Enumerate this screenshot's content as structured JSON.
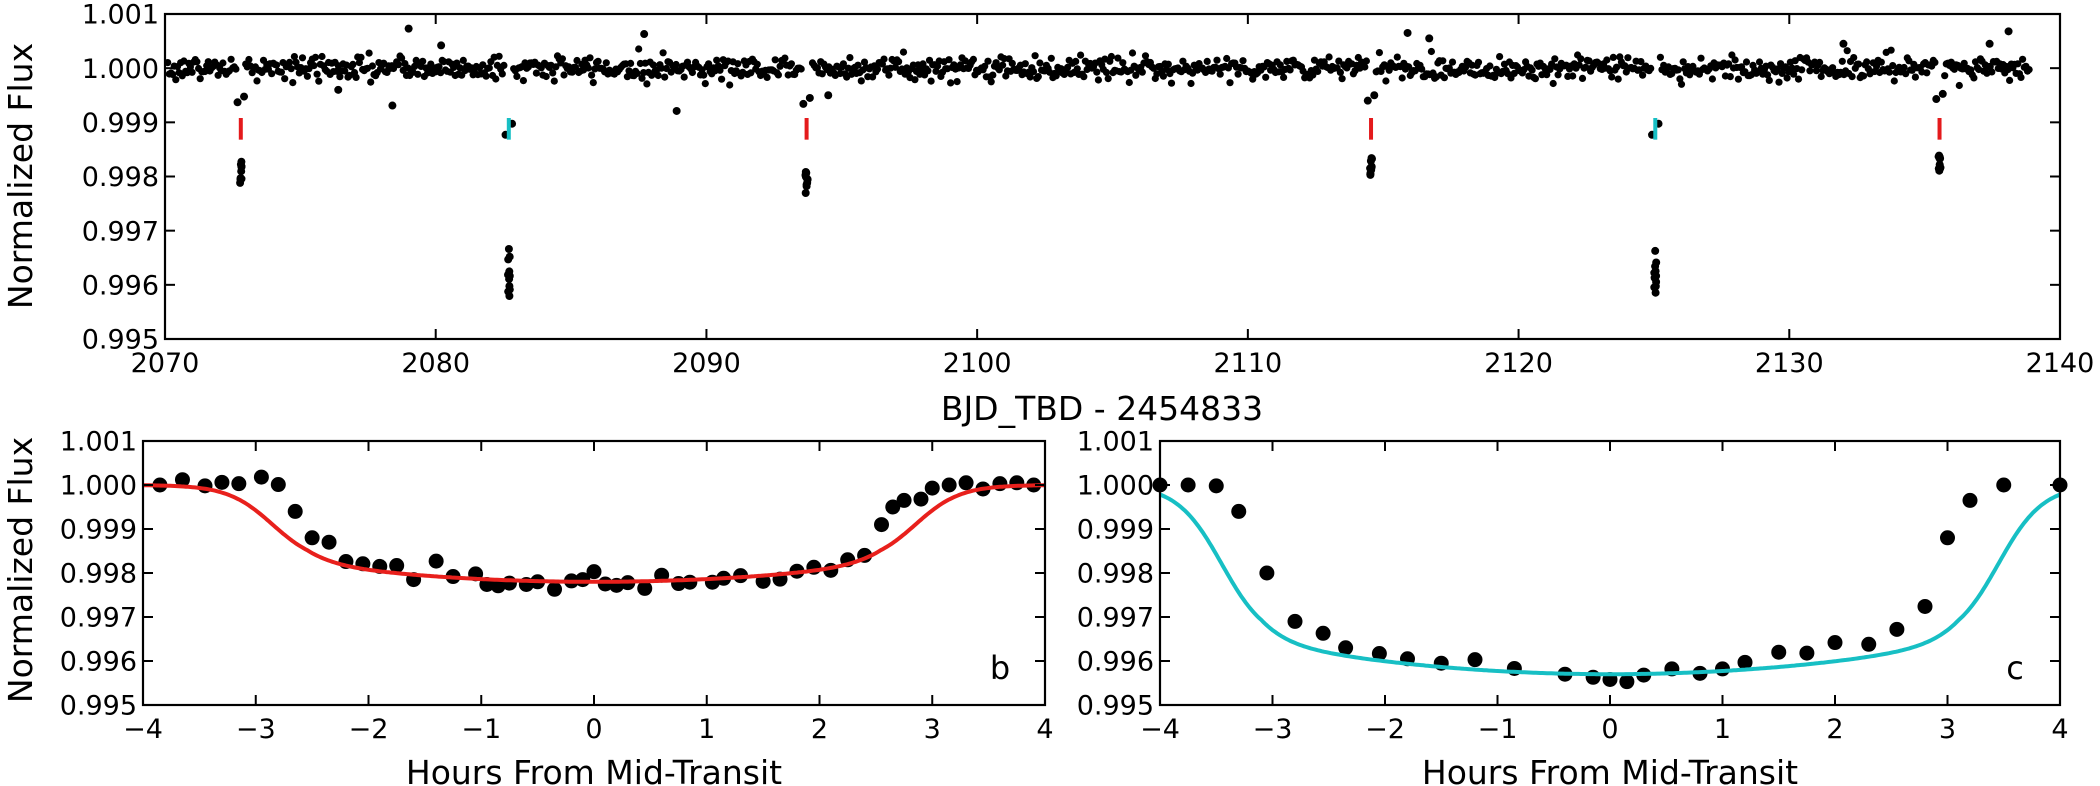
{
  "chart_data": [
    {
      "id": "top",
      "type": "scatter",
      "panel": "lightcurve",
      "ylabel": "Normalized Flux",
      "xlabel": "BJD_TBD - 2454833",
      "xlim": [
        2070,
        2140
      ],
      "ylim": [
        0.995,
        1.001
      ],
      "xticks": [
        2070,
        2080,
        2090,
        2100,
        2110,
        2120,
        2130,
        2140
      ],
      "xtick_labels": [
        "2070",
        "2080",
        "2090",
        "2100",
        "2110",
        "2120",
        "2130",
        "2140"
      ],
      "yticks": [
        0.995,
        0.996,
        0.997,
        0.998,
        0.999,
        1.0,
        1.001
      ],
      "ytick_labels": [
        "0.995",
        "0.996",
        "0.997",
        "0.998",
        "0.999",
        "1.000",
        "1.001"
      ],
      "baseline": {
        "x_start": 2070.1,
        "x_end": 2138.9,
        "step": 0.06,
        "center": 1.0,
        "scatter": 0.00011
      },
      "transits": [
        {
          "planet": "b",
          "t": 2072.8,
          "depth": 0.0021,
          "marker_color": "#e41a1c"
        },
        {
          "planet": "c",
          "t": 2082.7,
          "depth": 0.0041,
          "marker_color": "#17bfc4"
        },
        {
          "planet": "b",
          "t": 2093.7,
          "depth": 0.0022,
          "marker_color": "#e41a1c"
        },
        {
          "planet": "b",
          "t": 2114.55,
          "depth": 0.002,
          "marker_color": "#e41a1c"
        },
        {
          "planet": "c",
          "t": 2125.05,
          "depth": 0.0041,
          "marker_color": "#17bfc4"
        },
        {
          "planet": "b",
          "t": 2135.55,
          "depth": 0.0019,
          "marker_color": "#e41a1c"
        }
      ],
      "outliers": [
        {
          "x": 2079.0,
          "y": 1.00073
        },
        {
          "x": 2087.7,
          "y": 1.00063
        },
        {
          "x": 2078.4,
          "y": 0.99931
        },
        {
          "x": 2088.9,
          "y": 0.99921
        },
        {
          "x": 2115.9,
          "y": 1.00065
        },
        {
          "x": 2116.7,
          "y": 1.00055
        },
        {
          "x": 2138.1,
          "y": 1.00068
        },
        {
          "x": 2137.4,
          "y": 1.00045
        },
        {
          "x": 2094.5,
          "y": 0.9995
        },
        {
          "x": 2132.0,
          "y": 1.00045
        },
        {
          "x": 2076.4,
          "y": 0.9996
        },
        {
          "x": 2080.2,
          "y": 1.00042
        }
      ]
    },
    {
      "id": "b",
      "type": "scatter",
      "panel": "folded-b",
      "ylabel": "Normalized Flux",
      "xlabel": "Hours From Mid-Transit",
      "xlim": [
        -4,
        4
      ],
      "ylim": [
        0.995,
        1.001
      ],
      "xticks": [
        -4,
        -3,
        -2,
        -1,
        0,
        1,
        2,
        3,
        4
      ],
      "xtick_labels": [
        "−4",
        "−3",
        "−2",
        "−1",
        "0",
        "1",
        "2",
        "3",
        "4"
      ],
      "yticks": [
        0.995,
        0.996,
        0.997,
        0.998,
        0.999,
        1.0,
        1.001
      ],
      "ytick_labels": [
        "0.995",
        "0.996",
        "0.997",
        "0.998",
        "0.999",
        "1.000",
        "1.001"
      ],
      "panel_label": "b",
      "fit_color": "#e8201c",
      "model": {
        "depth_edge": 0.0018,
        "depth_center": 0.0022,
        "t1": 2.85,
        "w": 0.2,
        "half": 2.55
      },
      "x": [
        -3.85,
        -3.65,
        -3.45,
        -3.3,
        -3.15,
        -2.95,
        -2.8,
        -2.65,
        -2.5,
        -2.35,
        -2.2,
        -2.05,
        -1.9,
        -1.75,
        -1.6,
        -1.4,
        -1.25,
        -1.05,
        -0.95,
        -0.85,
        -0.75,
        -0.6,
        -0.5,
        -0.35,
        -0.2,
        -0.1,
        0.0,
        0.1,
        0.2,
        0.3,
        0.45,
        0.6,
        0.75,
        0.85,
        1.05,
        1.15,
        1.3,
        1.5,
        1.65,
        1.8,
        1.95,
        2.1,
        2.25,
        2.4,
        2.55,
        2.65,
        2.75,
        2.9,
        3.0,
        3.15,
        3.3,
        3.45,
        3.6,
        3.75,
        3.9
      ],
      "y": [
        1.0,
        1.00012,
        0.99998,
        1.00006,
        1.00003,
        1.00018,
        1.00001,
        0.9994,
        0.9988,
        0.9987,
        0.99826,
        0.99821,
        0.99815,
        0.99817,
        0.99785,
        0.99827,
        0.99792,
        0.99798,
        0.99774,
        0.99771,
        0.99777,
        0.99774,
        0.9978,
        0.99763,
        0.99782,
        0.99785,
        0.99803,
        0.99775,
        0.99772,
        0.99778,
        0.99765,
        0.99795,
        0.99776,
        0.99779,
        0.99779,
        0.99788,
        0.99794,
        0.99781,
        0.99786,
        0.99804,
        0.99813,
        0.99806,
        0.9983,
        0.9984,
        0.9991,
        0.9995,
        0.99965,
        0.99968,
        0.99993,
        1.0,
        1.00005,
        0.99991,
        1.00003,
        1.00005,
        1.0
      ]
    },
    {
      "id": "c",
      "type": "scatter",
      "panel": "folded-c",
      "ylabel": "",
      "xlabel": "Hours From Mid-Transit",
      "xlim": [
        -4,
        4
      ],
      "ylim": [
        0.995,
        1.001
      ],
      "xticks": [
        -4,
        -3,
        -2,
        -1,
        0,
        1,
        2,
        3,
        4
      ],
      "xtick_labels": [
        "−4",
        "−3",
        "−2",
        "−1",
        "0",
        "1",
        "2",
        "3",
        "4"
      ],
      "yticks": [
        0.995,
        0.996,
        0.997,
        0.998,
        0.999,
        1.0,
        1.001
      ],
      "ytick_labels": [
        "0.995",
        "0.996",
        "0.997",
        "0.998",
        "0.999",
        "1.000",
        "1.001"
      ],
      "panel_label": "c",
      "fit_color": "#17bfc4",
      "model": {
        "depth_edge": 0.0036,
        "depth_center": 0.0043,
        "t1": 3.45,
        "w": 0.2,
        "half": 3.1
      },
      "x": [
        -4.0,
        -3.75,
        -3.5,
        -3.3,
        -3.05,
        -2.8,
        -2.55,
        -2.35,
        -2.05,
        -1.8,
        -1.5,
        -1.2,
        -0.85,
        -0.4,
        -0.15,
        0.0,
        0.15,
        0.3,
        0.55,
        0.8,
        1.0,
        1.2,
        1.5,
        1.75,
        2.0,
        2.3,
        2.55,
        2.8,
        3.0,
        3.2,
        3.5,
        4.0
      ],
      "y": [
        1.0,
        1.0,
        0.99998,
        0.9994,
        0.998,
        0.9969,
        0.99663,
        0.9963,
        0.99617,
        0.99605,
        0.99595,
        0.99603,
        0.99583,
        0.9957,
        0.99563,
        0.99558,
        0.99553,
        0.99568,
        0.99582,
        0.99572,
        0.99582,
        0.99597,
        0.9962,
        0.99618,
        0.99642,
        0.99638,
        0.99672,
        0.99724,
        0.9988,
        0.99965,
        1.0,
        1.0
      ]
    }
  ]
}
